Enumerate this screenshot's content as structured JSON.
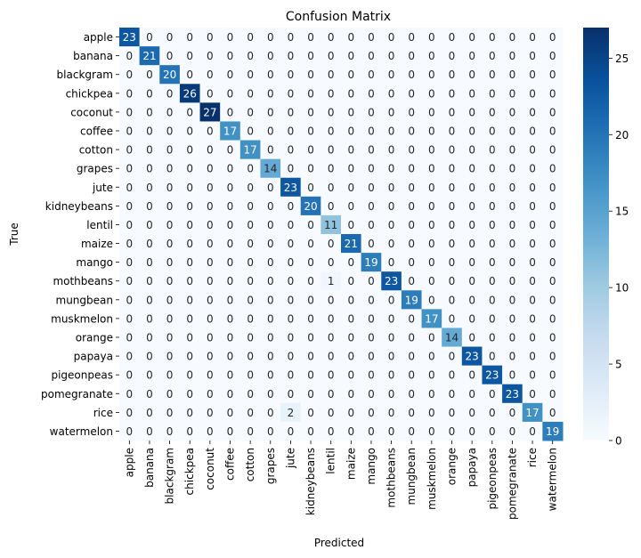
{
  "chart_data": {
    "type": "heatmap",
    "title": "Confusion Matrix",
    "xlabel": "Predicted",
    "ylabel": "True",
    "labels": [
      "apple",
      "banana",
      "blackgram",
      "chickpea",
      "coconut",
      "coffee",
      "cotton",
      "grapes",
      "jute",
      "kidneybeans",
      "lentil",
      "maize",
      "mango",
      "mothbeans",
      "mungbean",
      "muskmelon",
      "orange",
      "papaya",
      "pigeonpeas",
      "pomegranate",
      "rice",
      "watermelon"
    ],
    "matrix": [
      [
        23,
        0,
        0,
        0,
        0,
        0,
        0,
        0,
        0,
        0,
        0,
        0,
        0,
        0,
        0,
        0,
        0,
        0,
        0,
        0,
        0,
        0
      ],
      [
        0,
        21,
        0,
        0,
        0,
        0,
        0,
        0,
        0,
        0,
        0,
        0,
        0,
        0,
        0,
        0,
        0,
        0,
        0,
        0,
        0,
        0
      ],
      [
        0,
        0,
        20,
        0,
        0,
        0,
        0,
        0,
        0,
        0,
        0,
        0,
        0,
        0,
        0,
        0,
        0,
        0,
        0,
        0,
        0,
        0
      ],
      [
        0,
        0,
        0,
        26,
        0,
        0,
        0,
        0,
        0,
        0,
        0,
        0,
        0,
        0,
        0,
        0,
        0,
        0,
        0,
        0,
        0,
        0
      ],
      [
        0,
        0,
        0,
        0,
        27,
        0,
        0,
        0,
        0,
        0,
        0,
        0,
        0,
        0,
        0,
        0,
        0,
        0,
        0,
        0,
        0,
        0
      ],
      [
        0,
        0,
        0,
        0,
        0,
        17,
        0,
        0,
        0,
        0,
        0,
        0,
        0,
        0,
        0,
        0,
        0,
        0,
        0,
        0,
        0,
        0
      ],
      [
        0,
        0,
        0,
        0,
        0,
        0,
        17,
        0,
        0,
        0,
        0,
        0,
        0,
        0,
        0,
        0,
        0,
        0,
        0,
        0,
        0,
        0
      ],
      [
        0,
        0,
        0,
        0,
        0,
        0,
        0,
        14,
        0,
        0,
        0,
        0,
        0,
        0,
        0,
        0,
        0,
        0,
        0,
        0,
        0,
        0
      ],
      [
        0,
        0,
        0,
        0,
        0,
        0,
        0,
        0,
        23,
        0,
        0,
        0,
        0,
        0,
        0,
        0,
        0,
        0,
        0,
        0,
        0,
        0
      ],
      [
        0,
        0,
        0,
        0,
        0,
        0,
        0,
        0,
        0,
        20,
        0,
        0,
        0,
        0,
        0,
        0,
        0,
        0,
        0,
        0,
        0,
        0
      ],
      [
        0,
        0,
        0,
        0,
        0,
        0,
        0,
        0,
        0,
        0,
        11,
        0,
        0,
        0,
        0,
        0,
        0,
        0,
        0,
        0,
        0,
        0
      ],
      [
        0,
        0,
        0,
        0,
        0,
        0,
        0,
        0,
        0,
        0,
        0,
        21,
        0,
        0,
        0,
        0,
        0,
        0,
        0,
        0,
        0,
        0
      ],
      [
        0,
        0,
        0,
        0,
        0,
        0,
        0,
        0,
        0,
        0,
        0,
        0,
        19,
        0,
        0,
        0,
        0,
        0,
        0,
        0,
        0,
        0
      ],
      [
        0,
        0,
        0,
        0,
        0,
        0,
        0,
        0,
        0,
        0,
        1,
        0,
        0,
        23,
        0,
        0,
        0,
        0,
        0,
        0,
        0,
        0
      ],
      [
        0,
        0,
        0,
        0,
        0,
        0,
        0,
        0,
        0,
        0,
        0,
        0,
        0,
        0,
        19,
        0,
        0,
        0,
        0,
        0,
        0,
        0
      ],
      [
        0,
        0,
        0,
        0,
        0,
        0,
        0,
        0,
        0,
        0,
        0,
        0,
        0,
        0,
        0,
        17,
        0,
        0,
        0,
        0,
        0,
        0
      ],
      [
        0,
        0,
        0,
        0,
        0,
        0,
        0,
        0,
        0,
        0,
        0,
        0,
        0,
        0,
        0,
        0,
        14,
        0,
        0,
        0,
        0,
        0
      ],
      [
        0,
        0,
        0,
        0,
        0,
        0,
        0,
        0,
        0,
        0,
        0,
        0,
        0,
        0,
        0,
        0,
        0,
        23,
        0,
        0,
        0,
        0
      ],
      [
        0,
        0,
        0,
        0,
        0,
        0,
        0,
        0,
        0,
        0,
        0,
        0,
        0,
        0,
        0,
        0,
        0,
        0,
        23,
        0,
        0,
        0
      ],
      [
        0,
        0,
        0,
        0,
        0,
        0,
        0,
        0,
        0,
        0,
        0,
        0,
        0,
        0,
        0,
        0,
        0,
        0,
        0,
        23,
        0,
        0
      ],
      [
        0,
        0,
        0,
        0,
        0,
        0,
        0,
        0,
        2,
        0,
        0,
        0,
        0,
        0,
        0,
        0,
        0,
        0,
        0,
        0,
        17,
        0
      ],
      [
        0,
        0,
        0,
        0,
        0,
        0,
        0,
        0,
        0,
        0,
        0,
        0,
        0,
        0,
        0,
        0,
        0,
        0,
        0,
        0,
        0,
        19
      ]
    ],
    "colorscale": "Blues",
    "color_min": "#f7fbff",
    "color_max": "#08306b",
    "vmin": 0,
    "vmax": 27,
    "colorbar_ticks": [
      0,
      5,
      10,
      15,
      20,
      25
    ]
  }
}
